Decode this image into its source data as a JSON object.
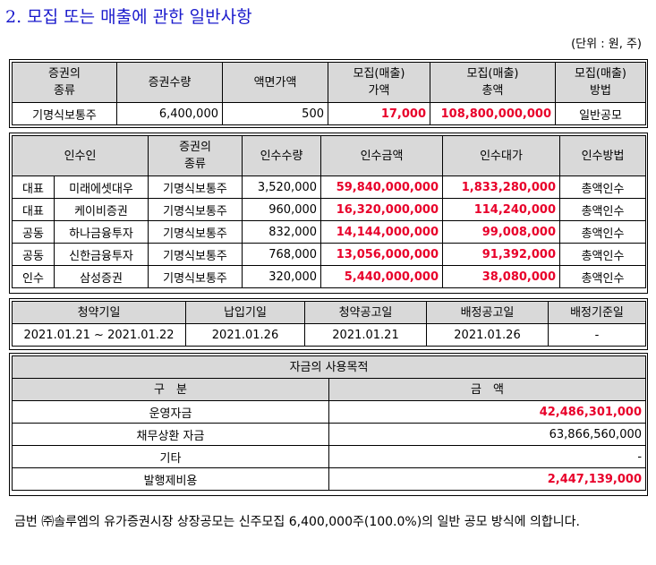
{
  "title": "2. 모집 또는 매출에 관한 일반사항",
  "unit_note": "(단위 : 원, 주)",
  "offering": {
    "headers": [
      "증권의\n종류",
      "증권수량",
      "액면가액",
      "모집(매출)\n가액",
      "모집(매출)\n총액",
      "모집(매출)\n방법"
    ],
    "row": [
      "기명식보통주",
      "6,400,000",
      "500",
      "17,000",
      "108,800,000,000",
      "일반공모"
    ]
  },
  "underwriters": {
    "headers": [
      "인수인",
      "증권의\n종류",
      "인수수량",
      "인수금액",
      "인수대가",
      "인수방법"
    ],
    "rows": [
      {
        "role": "대표",
        "name": "미래에셋대우",
        "type": "기명식보통주",
        "qty": "3,520,000",
        "amount": "59,840,000,000",
        "fee": "1,833,280,000",
        "method": "총액인수"
      },
      {
        "role": "대표",
        "name": "케이비증권",
        "type": "기명식보통주",
        "qty": "960,000",
        "amount": "16,320,000,000",
        "fee": "114,240,000",
        "method": "총액인수"
      },
      {
        "role": "공동",
        "name": "하나금융투자",
        "type": "기명식보통주",
        "qty": "832,000",
        "amount": "14,144,000,000",
        "fee": "99,008,000",
        "method": "총액인수"
      },
      {
        "role": "공동",
        "name": "신한금융투자",
        "type": "기명식보통주",
        "qty": "768,000",
        "amount": "13,056,000,000",
        "fee": "91,392,000",
        "method": "총액인수"
      },
      {
        "role": "인수",
        "name": "삼성증권",
        "type": "기명식보통주",
        "qty": "320,000",
        "amount": "5,440,000,000",
        "fee": "38,080,000",
        "method": "총액인수"
      }
    ]
  },
  "schedule": {
    "headers": [
      "청약기일",
      "납입기일",
      "청약공고일",
      "배정공고일",
      "배정기준일"
    ],
    "row": [
      "2021.01.21 ~ 2021.01.22",
      "2021.01.26",
      "2021.01.21",
      "2021.01.26",
      "-"
    ]
  },
  "funds": {
    "caption": "자금의 사용목적",
    "headers": [
      "구　분",
      "금　액"
    ],
    "rows": [
      {
        "label": "운영자금",
        "amount": "42,486,301,000"
      },
      {
        "label": "채무상환 자금",
        "amount": "63,866,560,000"
      },
      {
        "label": "기타",
        "amount": "-"
      },
      {
        "label": "발행제비용",
        "amount": "2,447,139,000"
      }
    ]
  },
  "note": "금번 ㈜솔루엠의 유가증권시장 상장공모는 신주모집 6,400,000주(100.0%)의 일반 공모 방식에 의합니다."
}
